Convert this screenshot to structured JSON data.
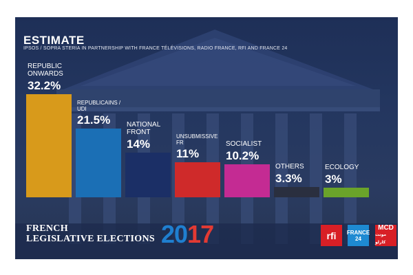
{
  "header": {
    "title": "ESTIMATE",
    "subtitle": "IPSOS / SOPRA STERIA IN PARTNERSHIP WITH FRANCE TÉLÉVISIONS, RADIO FRANCE, RFI AND FRANCE 24"
  },
  "chart_data": {
    "type": "bar",
    "categories": [
      "REPUBLIC ONWARDS",
      "REPUBLICAINS / UDI",
      "NATIONAL FRONT",
      "UNSUBMISSIVE FR",
      "SOCIALIST",
      "OTHERS",
      "ECOLOGY"
    ],
    "values": [
      32.2,
      21.5,
      14,
      11,
      10.2,
      3.3,
      3
    ],
    "value_labels": [
      "32.2%",
      "21.5%",
      "14%",
      "11%",
      "10.2%",
      "3.3%",
      "3%"
    ],
    "colors": [
      "#d89a1b",
      "#1b6fb5",
      "#1b2f66",
      "#cf2a2a",
      "#c42b93",
      "#2a2f3f",
      "#6aa32a"
    ],
    "label_size": [
      "big",
      "small",
      "big",
      "small",
      "big",
      "big",
      "big"
    ],
    "unit": "%"
  },
  "footer": {
    "title_line1": "FRENCH",
    "title_line2": "LEGISLATIVE ELECTIONS",
    "year_part1": "20",
    "year_part2": "17"
  },
  "logos": {
    "rfi": "rfi",
    "france24_line1": "FRANCE",
    "france24_line2": "24",
    "mcd": "MCD"
  },
  "colors": {
    "background": "#23365f",
    "year_blue": "#1f7fd0",
    "year_red": "#e23a33",
    "rfi_red": "#d81f26",
    "france24_blue": "#1e8ad2"
  }
}
